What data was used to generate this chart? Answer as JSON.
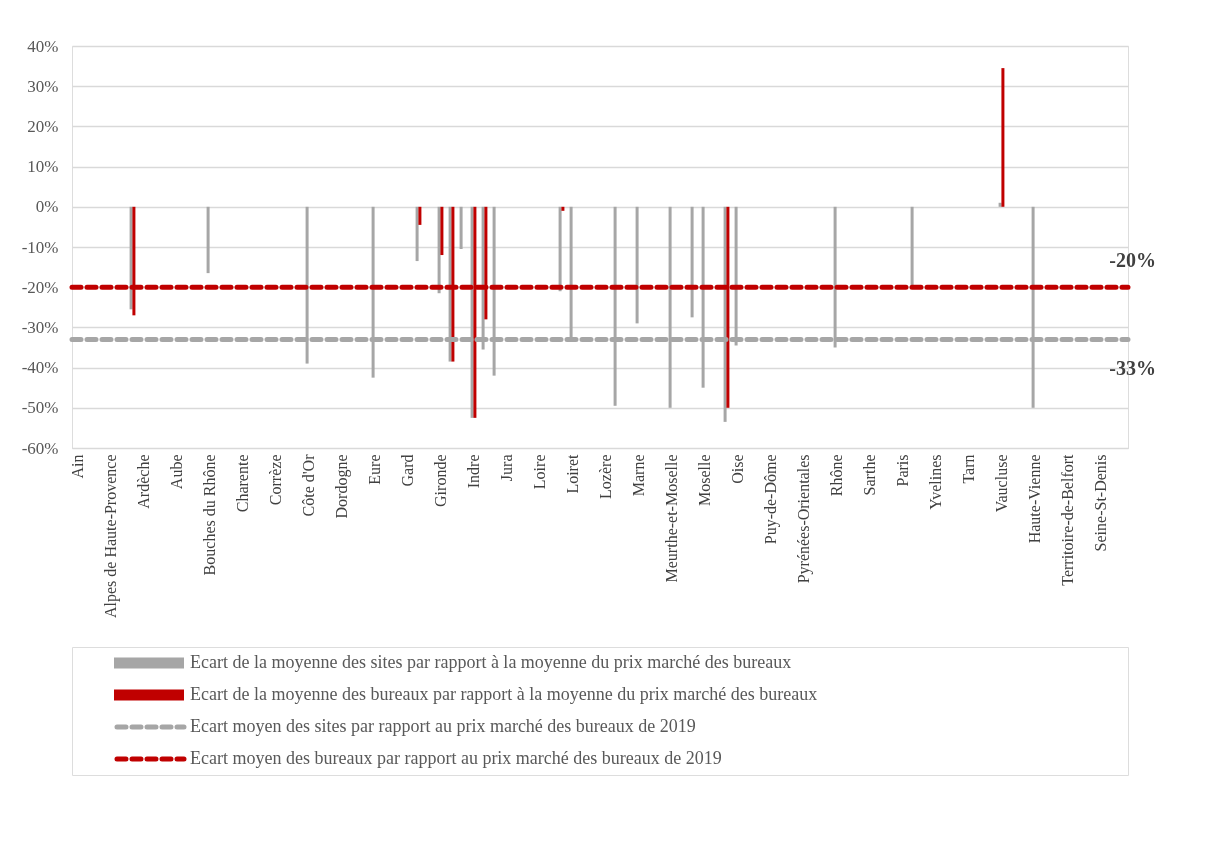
{
  "chart_data": {
    "type": "bar",
    "categories": [
      "Ain",
      null,
      null,
      "Alpes de Haute-Provence",
      null,
      null,
      "Ardèche",
      null,
      null,
      "Aube",
      null,
      null,
      "Bouches du Rhône",
      null,
      null,
      "Charente",
      null,
      null,
      "Corrèze",
      null,
      null,
      "Côte d'Or",
      null,
      null,
      "Dordogne",
      null,
      null,
      "Eure",
      null,
      null,
      "Gard",
      null,
      null,
      "Gironde",
      null,
      null,
      "Indre",
      null,
      null,
      "Jura",
      null,
      null,
      "Loire",
      null,
      null,
      "Loiret",
      null,
      null,
      "Lozère",
      null,
      null,
      "Marne",
      null,
      null,
      "Meurthe-et-Moselle",
      null,
      null,
      "Moselle",
      null,
      null,
      "Oise",
      null,
      null,
      "Puy-de-Dôme",
      null,
      null,
      "Pyrénées-Orientales",
      null,
      null,
      "Rhône",
      null,
      null,
      "Sarthe",
      null,
      null,
      "Paris",
      null,
      null,
      "Yvelines",
      null,
      null,
      "Tarn",
      null,
      null,
      "Vaucluse",
      null,
      null,
      "Haute-Vienne",
      null,
      null,
      "Territoire-de-Belfort",
      null,
      null,
      "Seine-St-Denis",
      null,
      null
    ],
    "series": [
      {
        "name": "Ecart de la moyenne des sites par rapport à la moyenne du prix marché des bureaux",
        "color": "#a6a6a6",
        "values": [
          null,
          null,
          null,
          null,
          null,
          -25.5,
          null,
          null,
          null,
          null,
          null,
          null,
          -16.5,
          null,
          null,
          null,
          null,
          null,
          null,
          null,
          null,
          -39,
          null,
          null,
          null,
          null,
          null,
          -42.5,
          null,
          null,
          null,
          -13.5,
          null,
          -21.5,
          -38.5,
          -10.5,
          -52.5,
          -35.5,
          -42,
          null,
          null,
          null,
          null,
          null,
          -21,
          -33,
          null,
          null,
          null,
          -49.5,
          null,
          -29,
          null,
          null,
          -50,
          null,
          -27.5,
          -45,
          null,
          -53.5,
          -34.5,
          null,
          null,
          null,
          null,
          null,
          null,
          null,
          null,
          -35,
          null,
          null,
          null,
          null,
          null,
          null,
          -19.5,
          null,
          null,
          null,
          null,
          null,
          null,
          null,
          1,
          null,
          null,
          -50,
          null,
          null,
          null,
          null,
          null,
          null,
          null,
          null
        ]
      },
      {
        "name": "Ecart de la moyenne des bureaux par rapport à la moyenne du prix marché des bureaux",
        "color": "#c00000",
        "values": [
          null,
          null,
          null,
          null,
          null,
          -27,
          null,
          null,
          null,
          null,
          null,
          null,
          null,
          null,
          null,
          null,
          null,
          null,
          null,
          null,
          null,
          null,
          null,
          null,
          null,
          null,
          null,
          null,
          null,
          null,
          null,
          -4.5,
          null,
          -12,
          -38.5,
          null,
          -52.5,
          -28,
          null,
          null,
          null,
          null,
          null,
          null,
          -1,
          null,
          null,
          null,
          null,
          null,
          null,
          null,
          null,
          null,
          null,
          null,
          null,
          null,
          null,
          -50,
          null,
          null,
          null,
          null,
          null,
          null,
          null,
          null,
          null,
          null,
          null,
          null,
          null,
          null,
          null,
          null,
          null,
          null,
          null,
          null,
          null,
          null,
          null,
          null,
          34.5,
          null,
          null,
          null,
          null,
          null,
          null,
          null,
          null,
          null,
          null,
          null
        ]
      }
    ],
    "ylim": [
      -60,
      40
    ],
    "yticks": [
      {
        "value": -60,
        "label": "-60%"
      },
      {
        "value": -50,
        "label": "-50%"
      },
      {
        "value": -40,
        "label": "-40%"
      },
      {
        "value": -30,
        "label": "-30%"
      },
      {
        "value": -20,
        "label": "-20%"
      },
      {
        "value": -10,
        "label": "-10%"
      },
      {
        "value": 0,
        "label": "0%"
      },
      {
        "value": 10,
        "label": "10%"
      },
      {
        "value": 20,
        "label": "20%"
      },
      {
        "value": 30,
        "label": "30%"
      },
      {
        "value": 40,
        "label": "40%"
      }
    ],
    "ref_lines": [
      {
        "axis": "y",
        "value": -33,
        "label": "Ecart moyen des sites par rapport au prix marché des bureaux de 2019",
        "color": "#a6a6a6",
        "line_style": "dashed"
      },
      {
        "axis": "y",
        "value": -20,
        "label": "Ecart moyen des bureaux par rapport au prix marché des bureaux de 2019",
        "color": "#c00000",
        "line_style": "dashed"
      }
    ],
    "annotations": [
      {
        "text": "-20%",
        "y": -20
      },
      {
        "text": "-33%",
        "y": -33
      }
    ],
    "grid": "y",
    "legend": "bottom"
  }
}
